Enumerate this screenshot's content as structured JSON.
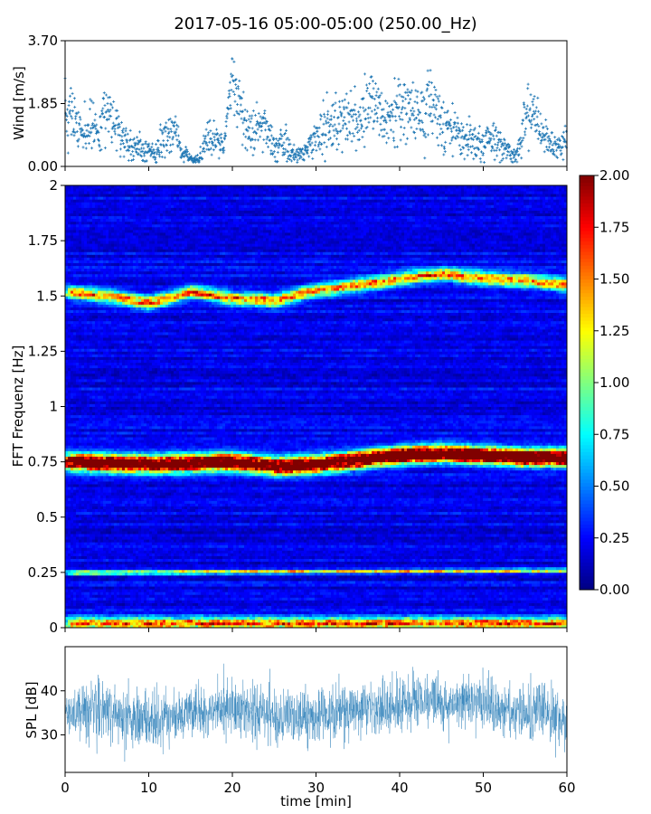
{
  "figure_title": "2017-05-16 05:00-05:00 (250.00_Hz)",
  "colors": {
    "series": "#1f77b4",
    "colormap": "jet"
  },
  "chart_data": [
    {
      "id": "wind",
      "type": "scatter",
      "ylabel": "Wind [m/s]",
      "xlim": [
        0,
        60
      ],
      "ylim": [
        0,
        3.7
      ],
      "yticks": [
        0.0,
        1.85,
        3.7
      ],
      "ytick_labels": [
        "0.00",
        "1.85",
        "3.70"
      ],
      "xtick_values": [
        0,
        10,
        20,
        30,
        40,
        50,
        60
      ],
      "x_label_visible": false,
      "marker": "plus",
      "samples_per_min": 25,
      "envelope": {
        "x": [
          0,
          1,
          2,
          3,
          4,
          5,
          6,
          7,
          8,
          9,
          10,
          11,
          12,
          13,
          14,
          15,
          16,
          17,
          18,
          19,
          20,
          21,
          22,
          23,
          24,
          25,
          26,
          27,
          28,
          29,
          30,
          31,
          32,
          33,
          34,
          35,
          36,
          37,
          38,
          39,
          40,
          41,
          42,
          43,
          44,
          45,
          46,
          47,
          48,
          49,
          50,
          51,
          52,
          53,
          54,
          55,
          56,
          57,
          58,
          59,
          60
        ],
        "center": [
          1.9,
          1.3,
          1.0,
          1.2,
          0.9,
          1.6,
          1.1,
          0.8,
          0.6,
          0.5,
          0.4,
          0.5,
          0.8,
          1.1,
          0.4,
          0.2,
          0.2,
          0.9,
          0.8,
          0.6,
          2.8,
          1.4,
          0.9,
          1.2,
          1.0,
          0.6,
          0.8,
          0.4,
          0.3,
          0.5,
          0.8,
          1.2,
          1.1,
          1.4,
          1.5,
          1.2,
          1.7,
          2.2,
          1.5,
          1.5,
          1.8,
          1.7,
          1.5,
          1.6,
          1.9,
          1.4,
          1.2,
          0.9,
          0.8,
          0.8,
          0.6,
          1.0,
          0.7,
          0.5,
          0.3,
          1.3,
          1.5,
          0.9,
          0.6,
          0.5,
          0.9
        ],
        "spread": [
          0.9,
          0.8,
          0.7,
          0.6,
          0.6,
          0.9,
          0.6,
          0.5,
          0.4,
          0.4,
          0.3,
          0.4,
          0.6,
          0.6,
          0.3,
          0.1,
          0.1,
          0.6,
          0.4,
          0.3,
          0.7,
          0.8,
          0.7,
          0.7,
          0.6,
          0.4,
          0.5,
          0.3,
          0.2,
          0.4,
          0.6,
          0.8,
          0.7,
          0.8,
          0.8,
          0.7,
          0.9,
          1.0,
          0.8,
          0.8,
          0.9,
          0.8,
          0.8,
          0.8,
          0.9,
          0.8,
          0.7,
          0.6,
          0.5,
          0.5,
          0.4,
          0.6,
          0.5,
          0.3,
          0.2,
          0.8,
          0.8,
          0.6,
          0.4,
          0.4,
          0.6
        ]
      }
    },
    {
      "id": "spectrogram",
      "type": "heatmap",
      "ylabel": "FFT Frequenz [Hz]",
      "xlim": [
        0,
        60
      ],
      "ylim": [
        0,
        2
      ],
      "yticks": [
        0,
        0.25,
        0.5,
        0.75,
        1,
        1.25,
        1.5,
        1.75,
        2
      ],
      "ytick_labels": [
        "0",
        "0.25",
        "0.5",
        "0.75",
        "1",
        "1.25",
        "1.5",
        "1.75",
        "2"
      ],
      "xtick_values": [
        0,
        10,
        20,
        30,
        40,
        50,
        60
      ],
      "colormap": "jet",
      "vmin": 0,
      "vmax": 2,
      "colorbar_ticks": [
        0.0,
        0.25,
        0.5,
        0.75,
        1.0,
        1.25,
        1.5,
        1.75,
        2.0
      ],
      "colorbar_labels": [
        "0.00",
        "0.25",
        "0.50",
        "0.75",
        "1.00",
        "1.25",
        "1.50",
        "1.75",
        "2.00"
      ],
      "background_level": 0.22,
      "bands": [
        {
          "name": "main",
          "t": [
            0,
            10,
            20,
            25,
            30,
            35,
            40,
            45,
            50,
            55,
            60
          ],
          "f": [
            0.75,
            0.74,
            0.75,
            0.73,
            0.74,
            0.76,
            0.78,
            0.79,
            0.78,
            0.77,
            0.77
          ],
          "width": 0.025,
          "peak": 1.6
        },
        {
          "name": "upper",
          "t": [
            0,
            5,
            10,
            15,
            20,
            25,
            30,
            35,
            40,
            45,
            50,
            55,
            60
          ],
          "f": [
            1.52,
            1.5,
            1.47,
            1.52,
            1.49,
            1.48,
            1.53,
            1.55,
            1.58,
            1.6,
            1.58,
            1.57,
            1.55
          ],
          "width": 0.02,
          "peak": 0.85
        },
        {
          "name": "low",
          "t": [
            0,
            60
          ],
          "f": [
            0.25,
            0.26
          ],
          "width": 0.006,
          "peak": 0.7
        },
        {
          "name": "ground",
          "t": [
            0,
            60
          ],
          "f": [
            0.02,
            0.02
          ],
          "width": 0.02,
          "peak": 0.9
        }
      ]
    },
    {
      "id": "spl",
      "type": "line",
      "ylabel": "SPL [dB]",
      "xlabel": "time [min]",
      "xlim": [
        0,
        60
      ],
      "ylim": [
        21.5,
        50
      ],
      "yticks": [
        30,
        40
      ],
      "ytick_labels": [
        "30",
        "40"
      ],
      "xtick_values": [
        0,
        10,
        20,
        30,
        40,
        50,
        60
      ],
      "xtick_labels": [
        "0",
        "10",
        "20",
        "30",
        "40",
        "50",
        "60"
      ],
      "samples_per_min": 40,
      "envelope": {
        "x": [
          0,
          5,
          10,
          15,
          20,
          25,
          30,
          35,
          40,
          45,
          50,
          55,
          60
        ],
        "center": [
          35,
          36,
          33,
          35,
          36,
          34,
          34,
          36,
          37,
          38,
          37,
          35,
          34
        ],
        "spread": [
          5,
          6,
          5,
          5,
          5,
          5,
          5,
          5,
          5,
          5,
          5,
          5,
          5
        ]
      },
      "min": 22.5,
      "max": 47
    }
  ]
}
